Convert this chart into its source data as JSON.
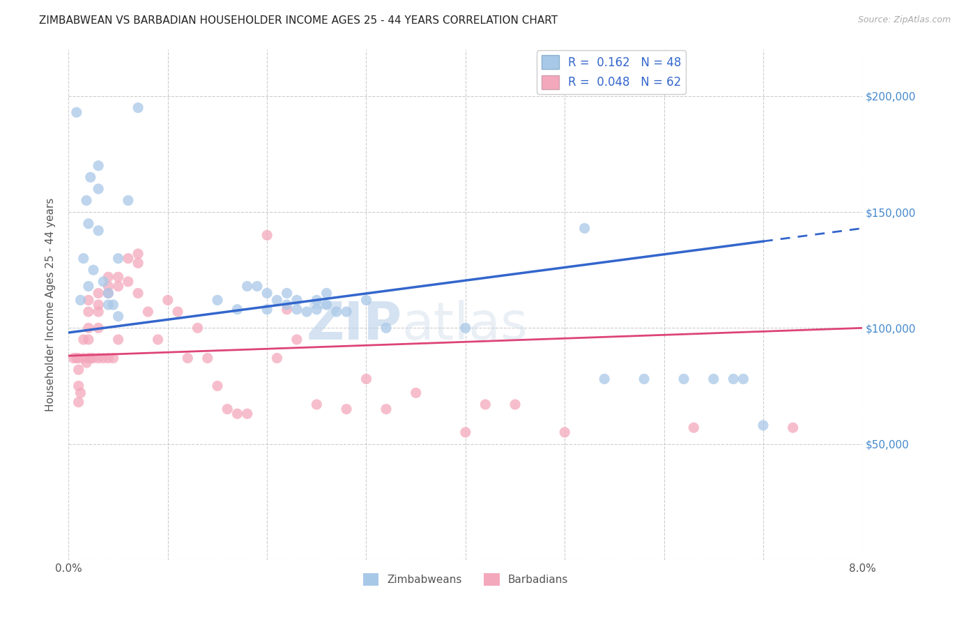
{
  "title": "ZIMBABWEAN VS BARBADIAN HOUSEHOLDER INCOME AGES 25 - 44 YEARS CORRELATION CHART",
  "source": "Source: ZipAtlas.com",
  "ylabel": "Householder Income Ages 25 - 44 years",
  "xlim": [
    0.0,
    0.08
  ],
  "ylim": [
    0,
    220000
  ],
  "yticks": [
    0,
    50000,
    100000,
    150000,
    200000
  ],
  "xticks": [
    0.0,
    0.01,
    0.02,
    0.03,
    0.04,
    0.05,
    0.06,
    0.07,
    0.08
  ],
  "zimbabwean_color": "#a8c8e8",
  "barbadian_color": "#f4a8bc",
  "trend_blue_color": "#3366cc",
  "trend_pink_color": "#dd4477",
  "R_zimbabwean": 0.162,
  "N_zimbabwean": 48,
  "R_barbadian": 0.048,
  "N_barbadian": 62,
  "blue_trend_y0": 98000,
  "blue_trend_y1": 143000,
  "pink_trend_y0": 88000,
  "pink_trend_y1": 100000,
  "zimbabwean_x": [
    0.0008,
    0.0012,
    0.0015,
    0.0018,
    0.002,
    0.002,
    0.0022,
    0.0025,
    0.003,
    0.003,
    0.003,
    0.0035,
    0.004,
    0.004,
    0.0045,
    0.005,
    0.005,
    0.006,
    0.007,
    0.015,
    0.017,
    0.018,
    0.019,
    0.02,
    0.02,
    0.021,
    0.022,
    0.022,
    0.023,
    0.023,
    0.024,
    0.025,
    0.025,
    0.026,
    0.026,
    0.027,
    0.028,
    0.03,
    0.032,
    0.04,
    0.052,
    0.054,
    0.058,
    0.062,
    0.065,
    0.067,
    0.068,
    0.07
  ],
  "zimbabwean_y": [
    193000,
    112000,
    130000,
    155000,
    118000,
    145000,
    165000,
    125000,
    170000,
    160000,
    142000,
    120000,
    115000,
    110000,
    110000,
    105000,
    130000,
    155000,
    195000,
    112000,
    108000,
    118000,
    118000,
    115000,
    108000,
    112000,
    110000,
    115000,
    108000,
    112000,
    107000,
    112000,
    108000,
    110000,
    115000,
    107000,
    107000,
    112000,
    100000,
    100000,
    143000,
    78000,
    78000,
    78000,
    78000,
    78000,
    78000,
    58000
  ],
  "barbadian_x": [
    0.0005,
    0.0008,
    0.001,
    0.001,
    0.001,
    0.001,
    0.0012,
    0.0015,
    0.0015,
    0.0018,
    0.002,
    0.002,
    0.002,
    0.002,
    0.002,
    0.0022,
    0.0025,
    0.003,
    0.003,
    0.003,
    0.003,
    0.003,
    0.0035,
    0.004,
    0.004,
    0.004,
    0.004,
    0.0045,
    0.005,
    0.005,
    0.005,
    0.006,
    0.006,
    0.007,
    0.007,
    0.007,
    0.008,
    0.009,
    0.01,
    0.011,
    0.012,
    0.013,
    0.014,
    0.015,
    0.016,
    0.017,
    0.018,
    0.02,
    0.021,
    0.022,
    0.023,
    0.025,
    0.028,
    0.03,
    0.032,
    0.035,
    0.04,
    0.042,
    0.045,
    0.05,
    0.063,
    0.073
  ],
  "barbadian_y": [
    87000,
    87000,
    87000,
    82000,
    75000,
    68000,
    72000,
    95000,
    87000,
    85000,
    112000,
    107000,
    100000,
    95000,
    87000,
    87000,
    87000,
    115000,
    110000,
    107000,
    100000,
    87000,
    87000,
    122000,
    118000,
    115000,
    87000,
    87000,
    122000,
    118000,
    95000,
    130000,
    120000,
    132000,
    128000,
    115000,
    107000,
    95000,
    112000,
    107000,
    87000,
    100000,
    87000,
    75000,
    65000,
    63000,
    63000,
    140000,
    87000,
    108000,
    95000,
    67000,
    65000,
    78000,
    65000,
    72000,
    55000,
    67000,
    67000,
    55000,
    57000,
    57000
  ]
}
